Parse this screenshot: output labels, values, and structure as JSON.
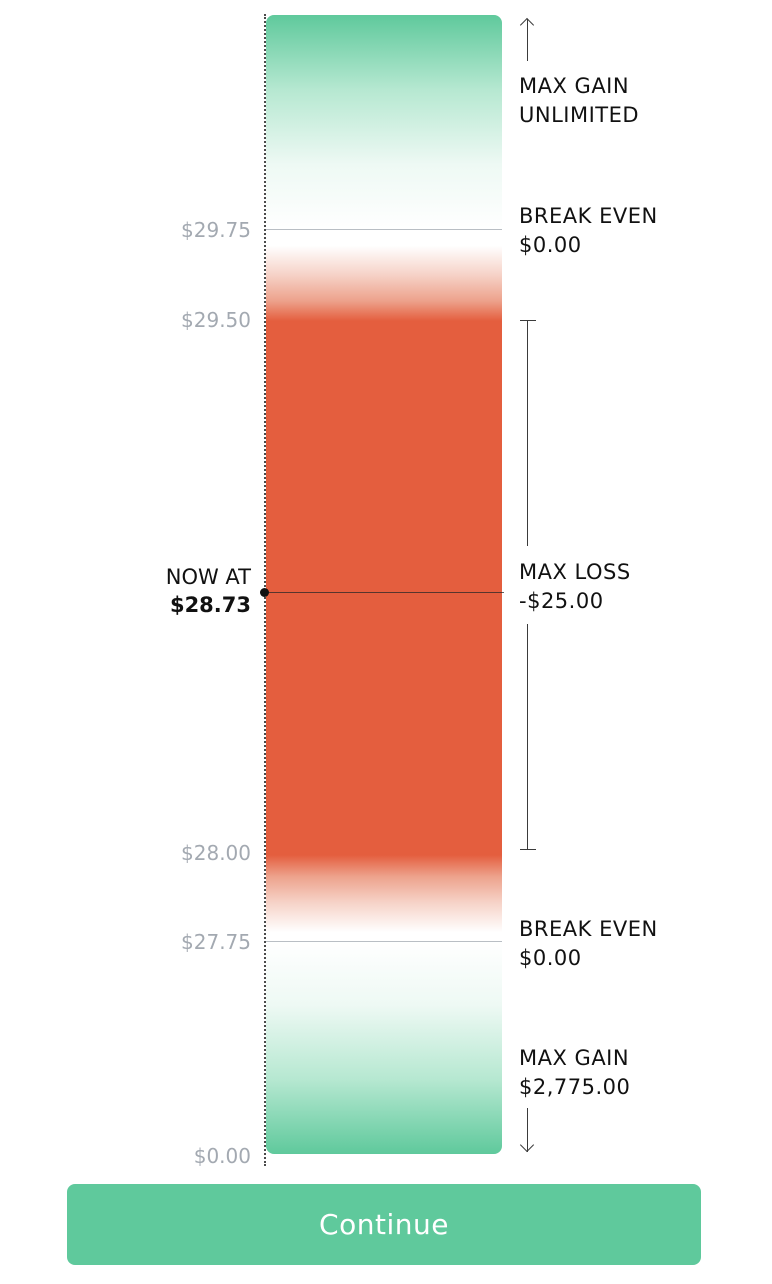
{
  "ticks": [
    {
      "label": "$29.75"
    },
    {
      "label": "$29.50"
    },
    {
      "label": "$28.00"
    },
    {
      "label": "$27.75"
    },
    {
      "label": "$0.00"
    }
  ],
  "now": {
    "title": "NOW AT",
    "price": "$28.73"
  },
  "notes": {
    "max_gain_top": {
      "title": "MAX GAIN",
      "value": "UNLIMITED"
    },
    "break_even_top": {
      "title": "BREAK EVEN",
      "value": "$0.00"
    },
    "max_loss": {
      "title": "MAX LOSS",
      "value": "-$25.00"
    },
    "break_even_bottom": {
      "title": "BREAK EVEN",
      "value": "$0.00"
    },
    "max_gain_bottom": {
      "title": "MAX GAIN",
      "value": "$2,775.00"
    }
  },
  "colors": {
    "gain": "#5fc99c",
    "loss": "#e45e3e"
  },
  "continue_label": "Continue"
}
